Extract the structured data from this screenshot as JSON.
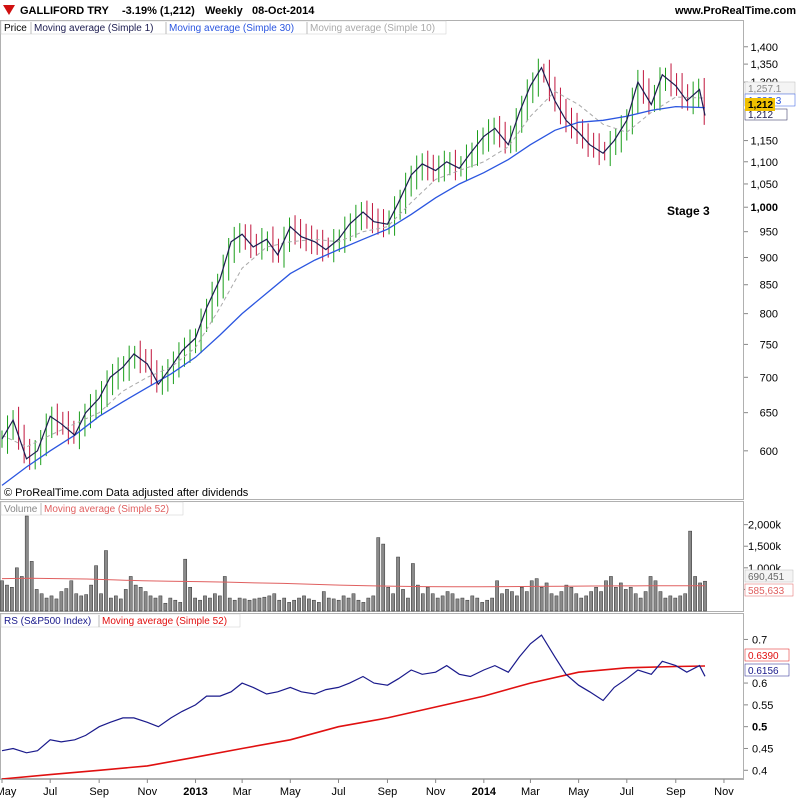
{
  "header": {
    "instrument": "GALLIFORD TRY",
    "change": "-3.19% (1,212)",
    "period": "Weekly",
    "date": "08-Oct-2014",
    "site": "www.ProRealTime.com"
  },
  "price_panel": {
    "labels": {
      "price": "Price",
      "ma1": "Moving average (Simple 1)",
      "ma30": "Moving average (Simple 30)",
      "ma10": "Moving average (Simple 10)"
    },
    "annotation": "Stage 3",
    "footer": "© ProRealTime.com  Data adjusted after dividends",
    "y_ticks": [
      "1,400",
      "1,350",
      "1,300",
      "1,150",
      "1,100",
      "1,050",
      "1,000",
      "950",
      "900",
      "850",
      "800",
      "750",
      "700",
      "650",
      "600"
    ],
    "markers": {
      "last": "1,212",
      "ma10": "1,257.1",
      "ma30": "1,232.3",
      "ma1": "1,212"
    }
  },
  "volume_panel": {
    "labels": {
      "volume": "Volume",
      "ma52": "Moving average (Simple 52)"
    },
    "y_ticks": [
      "2,000k",
      "1,500k",
      "1,000k",
      "500k"
    ],
    "markers": {
      "volume": "690,451",
      "ma52": "585,633"
    }
  },
  "rs_panel": {
    "labels": {
      "rs": "RS (S&P500 Index)",
      "ma52": "Moving average (Simple 52)"
    },
    "y_ticks": [
      "0.7",
      "0.6",
      "0.55",
      "0.5",
      "0.45",
      "0.4"
    ],
    "markers": {
      "rs": "0.6156",
      "ma52": "0.6390"
    }
  },
  "x_labels": [
    "May",
    "Jul",
    "Sep",
    "Nov",
    "2013",
    "Mar",
    "May",
    "Jul",
    "Sep",
    "Nov",
    "2014",
    "Mar",
    "May",
    "Jul",
    "Sep",
    "Nov"
  ],
  "colors": {
    "up": "#1a9e1a",
    "down": "#c0143c",
    "ma30": "#2b56e0",
    "ma1": "#1c1c50",
    "ma10": "#aaaaaa",
    "rs": "#1a1a8c",
    "rs_ma": "#e01010",
    "vol_ma": "#e06060",
    "last_marker": "#f0c000"
  },
  "chart_data": [
    {
      "type": "line",
      "title": "GALLIFORD TRY",
      "x_start": "2012-05-01",
      "x_end": "2014-10-08",
      "yscale": "log",
      "ylim": [
        555,
        1420
      ],
      "series": [
        {
          "name": "Moving average (Simple 1)",
          "x": [
            "2012-05-01",
            "2012-05-15",
            "2012-06-01",
            "2012-06-15",
            "2012-07-01",
            "2012-07-15",
            "2012-08-01",
            "2012-08-15",
            "2012-09-01",
            "2012-09-15",
            "2012-10-01",
            "2012-10-15",
            "2012-11-01",
            "2012-11-15",
            "2012-12-01",
            "2012-12-15",
            "2013-01-01",
            "2013-01-15",
            "2013-02-01",
            "2013-02-15",
            "2013-03-01",
            "2013-03-15",
            "2013-04-01",
            "2013-04-15",
            "2013-05-01",
            "2013-05-15",
            "2013-06-01",
            "2013-06-15",
            "2013-07-01",
            "2013-07-15",
            "2013-08-01",
            "2013-08-15",
            "2013-09-01",
            "2013-09-15",
            "2013-10-01",
            "2013-10-15",
            "2013-11-01",
            "2013-11-15",
            "2013-12-01",
            "2013-12-15",
            "2014-01-01",
            "2014-01-15",
            "2014-02-01",
            "2014-02-15",
            "2014-03-01",
            "2014-03-15",
            "2014-04-01",
            "2014-04-15",
            "2014-05-01",
            "2014-05-15",
            "2014-06-01",
            "2014-06-15",
            "2014-07-01",
            "2014-07-15",
            "2014-08-01",
            "2014-08-15",
            "2014-09-01",
            "2014-09-15",
            "2014-10-01",
            "2014-10-08"
          ],
          "values": [
            615,
            640,
            590,
            600,
            645,
            635,
            620,
            650,
            670,
            700,
            715,
            735,
            720,
            690,
            715,
            740,
            760,
            810,
            860,
            930,
            945,
            920,
            935,
            905,
            960,
            940,
            930,
            915,
            935,
            965,
            990,
            970,
            965,
            1010,
            1070,
            1095,
            1080,
            1100,
            1085,
            1120,
            1160,
            1180,
            1140,
            1220,
            1290,
            1340,
            1250,
            1200,
            1170,
            1140,
            1120,
            1150,
            1200,
            1300,
            1240,
            1320,
            1290,
            1250,
            1280,
            1212
          ]
        },
        {
          "name": "Moving average (Simple 30)",
          "x": [
            "2012-05-01",
            "2012-06-01",
            "2012-07-01",
            "2012-08-01",
            "2012-09-01",
            "2012-10-01",
            "2012-11-01",
            "2012-12-01",
            "2013-01-01",
            "2013-02-01",
            "2013-03-01",
            "2013-04-01",
            "2013-05-01",
            "2013-06-01",
            "2013-07-01",
            "2013-08-01",
            "2013-09-01",
            "2013-10-01",
            "2013-11-01",
            "2013-12-01",
            "2014-01-01",
            "2014-02-01",
            "2014-03-01",
            "2014-04-01",
            "2014-05-01",
            "2014-06-01",
            "2014-07-01",
            "2014-08-01",
            "2014-09-01",
            "2014-10-08"
          ],
          "values": [
            558,
            580,
            600,
            620,
            645,
            665,
            685,
            705,
            730,
            765,
            800,
            835,
            870,
            895,
            915,
            935,
            955,
            985,
            1020,
            1050,
            1075,
            1105,
            1140,
            1175,
            1195,
            1200,
            1210,
            1225,
            1235,
            1232.3
          ]
        },
        {
          "name": "Moving average (Simple 10)",
          "x": [
            "2012-05-01",
            "2012-06-01",
            "2012-07-01",
            "2012-08-01",
            "2012-09-01",
            "2012-10-01",
            "2012-11-01",
            "2012-12-01",
            "2013-01-01",
            "2013-02-01",
            "2013-03-01",
            "2013-04-01",
            "2013-05-01",
            "2013-06-01",
            "2013-07-01",
            "2013-08-01",
            "2013-09-01",
            "2013-10-01",
            "2013-11-01",
            "2013-12-01",
            "2014-01-01",
            "2014-02-01",
            "2014-03-01",
            "2014-04-01",
            "2014-05-01",
            "2014-06-01",
            "2014-07-01",
            "2014-08-01",
            "2014-09-01",
            "2014-10-08"
          ],
          "values": [
            620,
            605,
            620,
            635,
            650,
            680,
            700,
            715,
            745,
            810,
            880,
            920,
            930,
            935,
            930,
            950,
            960,
            1010,
            1060,
            1080,
            1100,
            1135,
            1210,
            1275,
            1240,
            1190,
            1170,
            1220,
            1260,
            1257.1
          ]
        }
      ]
    },
    {
      "type": "bar",
      "title": "Volume",
      "x_start": "2012-05-01",
      "x_end": "2014-10-08",
      "ylim": [
        0,
        2200
      ],
      "ylabel": "k",
      "values": [
        700,
        600,
        550,
        1000,
        800,
        2200,
        1150,
        500,
        400,
        300,
        350,
        280,
        450,
        520,
        700,
        400,
        350,
        380,
        600,
        1050,
        400,
        1400,
        300,
        350,
        280,
        500,
        800,
        600,
        550,
        450,
        350,
        300,
        350,
        180,
        300,
        250,
        200,
        1200,
        550,
        300,
        250,
        350,
        300,
        400,
        350,
        800,
        300,
        250,
        300,
        280,
        250,
        280,
        300,
        320,
        350,
        400,
        250,
        300,
        200,
        250,
        300,
        350,
        280,
        250,
        200,
        450,
        300,
        280,
        250,
        350,
        300,
        400,
        250,
        200,
        300,
        350,
        1700,
        1550,
        550,
        400,
        1250,
        500,
        300,
        1100,
        600,
        400,
        550,
        400,
        300,
        350,
        450,
        400,
        280,
        300,
        250,
        350,
        300,
        200,
        250,
        300,
        700,
        400,
        500,
        450,
        350,
        550,
        450,
        700,
        750,
        550,
        650,
        400,
        350,
        450,
        600,
        550,
        400,
        300,
        350,
        450,
        550,
        450,
        700,
        800,
        550,
        650,
        500,
        550,
        400,
        300,
        450,
        800,
        700,
        450,
        300,
        350,
        300,
        350,
        400,
        1850,
        800,
        650,
        690
      ],
      "series": [
        {
          "name": "Moving average (Simple 52)",
          "values": [
            750,
            760,
            750,
            740,
            720,
            700,
            690,
            680,
            670,
            650,
            640,
            620,
            600,
            585,
            575,
            565,
            560,
            560,
            565,
            570,
            575,
            580,
            582,
            584,
            585,
            585.633
          ]
        }
      ]
    },
    {
      "type": "line",
      "title": "RS (S&P500 Index)",
      "x_start": "2012-05-01",
      "x_end": "2014-10-08",
      "ylim": [
        0.38,
        0.74
      ],
      "series": [
        {
          "name": "RS (S&P500 Index)",
          "x": [
            "2012-05-01",
            "2012-05-15",
            "2012-06-01",
            "2012-06-15",
            "2012-07-01",
            "2012-07-15",
            "2012-08-01",
            "2012-08-15",
            "2012-09-01",
            "2012-09-15",
            "2012-10-01",
            "2012-10-15",
            "2012-11-01",
            "2012-11-15",
            "2012-12-01",
            "2012-12-15",
            "2013-01-01",
            "2013-01-15",
            "2013-02-01",
            "2013-02-15",
            "2013-03-01",
            "2013-03-15",
            "2013-04-01",
            "2013-04-15",
            "2013-05-01",
            "2013-05-15",
            "2013-06-01",
            "2013-06-15",
            "2013-07-01",
            "2013-07-15",
            "2013-08-01",
            "2013-08-15",
            "2013-09-01",
            "2013-09-15",
            "2013-10-01",
            "2013-10-15",
            "2013-11-01",
            "2013-11-15",
            "2013-12-01",
            "2013-12-15",
            "2014-01-01",
            "2014-01-15",
            "2014-02-01",
            "2014-02-15",
            "2014-03-01",
            "2014-03-15",
            "2014-04-01",
            "2014-04-15",
            "2014-05-01",
            "2014-05-15",
            "2014-06-01",
            "2014-06-15",
            "2014-07-01",
            "2014-07-15",
            "2014-08-01",
            "2014-08-15",
            "2014-09-01",
            "2014-09-15",
            "2014-10-01",
            "2014-10-08"
          ],
          "values": [
            0.445,
            0.45,
            0.44,
            0.445,
            0.47,
            0.465,
            0.47,
            0.48,
            0.5,
            0.51,
            0.52,
            0.52,
            0.51,
            0.5,
            0.52,
            0.535,
            0.55,
            0.57,
            0.57,
            0.58,
            0.6,
            0.59,
            0.575,
            0.58,
            0.59,
            0.58,
            0.575,
            0.585,
            0.59,
            0.6,
            0.615,
            0.6,
            0.595,
            0.61,
            0.63,
            0.62,
            0.625,
            0.64,
            0.62,
            0.615,
            0.63,
            0.64,
            0.625,
            0.66,
            0.69,
            0.71,
            0.66,
            0.62,
            0.595,
            0.58,
            0.56,
            0.59,
            0.61,
            0.63,
            0.62,
            0.65,
            0.64,
            0.625,
            0.64,
            0.6156
          ]
        },
        {
          "name": "Moving average (Simple 52)",
          "x": [
            "2012-05-01",
            "2012-07-01",
            "2012-09-01",
            "2012-11-01",
            "2013-01-01",
            "2013-03-01",
            "2013-05-01",
            "2013-07-01",
            "2013-09-01",
            "2013-11-01",
            "2014-01-01",
            "2014-03-01",
            "2014-05-01",
            "2014-07-01",
            "2014-09-01",
            "2014-10-08"
          ],
          "values": [
            0.38,
            0.39,
            0.4,
            0.41,
            0.43,
            0.45,
            0.47,
            0.5,
            0.52,
            0.545,
            0.57,
            0.6,
            0.625,
            0.635,
            0.638,
            0.639
          ]
        }
      ]
    }
  ]
}
